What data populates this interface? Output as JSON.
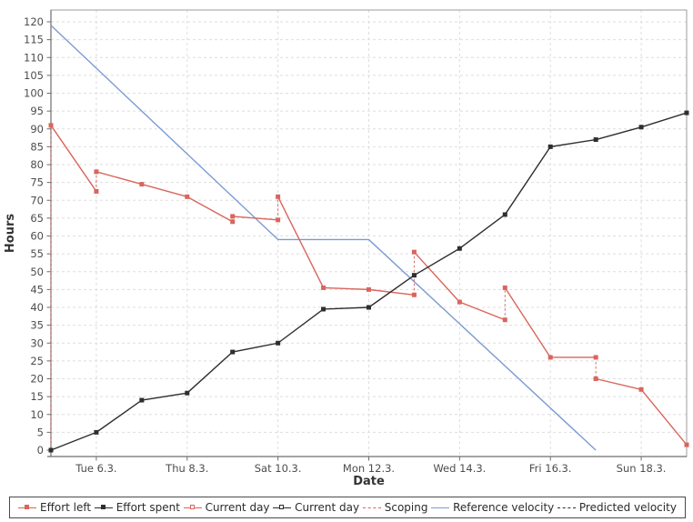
{
  "chart_data": {
    "type": "line",
    "xlabel": "Date",
    "ylabel": "Hours",
    "ylim": [
      0,
      120
    ],
    "ytick_step": 5,
    "x_axis_days": 14,
    "grid": "dashed",
    "x_ticks": [
      {
        "day": 1,
        "label": "Tue 6.3."
      },
      {
        "day": 3,
        "label": "Thu 8.3."
      },
      {
        "day": 5,
        "label": "Sat 10.3."
      },
      {
        "day": 7,
        "label": "Mon 12.3."
      },
      {
        "day": 9,
        "label": "Wed 14.3."
      },
      {
        "day": 11,
        "label": "Fri 16.3."
      },
      {
        "day": 13,
        "label": "Sun 18.3."
      }
    ],
    "colors": {
      "effort_left": "#d9655c",
      "effort_spent": "#2e2e2e",
      "reference": "#7b9bd2",
      "scoping": "#d9655c",
      "grid": "#dedede"
    },
    "series": [
      {
        "name": "Effort left",
        "type": "line",
        "color_key": "effort_left",
        "marker": "filled-square",
        "runs": [
          [
            [
              0,
              91
            ],
            [
              1,
              72.5
            ]
          ],
          [
            [
              1,
              78
            ],
            [
              2,
              74.5
            ],
            [
              3,
              71
            ],
            [
              4,
              64
            ]
          ],
          [
            [
              4,
              65.5
            ],
            [
              5,
              64.5
            ]
          ],
          [
            [
              5,
              71
            ],
            [
              6,
              45.5
            ],
            [
              7,
              45
            ],
            [
              8,
              43.5
            ]
          ],
          [
            [
              8,
              55.5
            ],
            [
              9,
              41.5
            ],
            [
              10,
              36.5
            ]
          ],
          [
            [
              10,
              45.5
            ],
            [
              11,
              26
            ],
            [
              12,
              26
            ]
          ],
          [
            [
              12,
              20
            ],
            [
              13,
              17
            ],
            [
              14,
              1.5
            ]
          ]
        ],
        "extra_markers": [
          [
            0,
            0
          ]
        ]
      },
      {
        "name": "Effort spent",
        "type": "line",
        "color_key": "effort_spent",
        "marker": "filled-square",
        "points": [
          [
            0,
            0
          ],
          [
            1,
            5
          ],
          [
            2,
            14
          ],
          [
            3,
            16
          ],
          [
            4,
            27.5
          ],
          [
            5,
            30
          ],
          [
            6,
            39.5
          ],
          [
            7,
            40
          ],
          [
            8,
            49
          ],
          [
            9,
            56.5
          ],
          [
            10,
            66
          ],
          [
            11,
            85
          ],
          [
            12,
            87
          ],
          [
            13,
            90.5
          ],
          [
            14,
            94.5
          ]
        ]
      },
      {
        "name": "Scoping",
        "type": "dashed-vertical",
        "color_key": "scoping",
        "segments": [
          [
            0,
            0,
            91
          ],
          [
            1,
            72.5,
            78
          ],
          [
            4,
            64,
            65.5
          ],
          [
            5,
            64.5,
            71
          ],
          [
            8,
            43.5,
            55.5
          ],
          [
            10,
            36.5,
            45.5
          ],
          [
            12,
            26,
            20
          ]
        ]
      },
      {
        "name": "Reference velocity",
        "type": "line",
        "color_key": "reference",
        "marker": "none",
        "points": [
          [
            0,
            119
          ],
          [
            5,
            59
          ],
          [
            7,
            59
          ],
          [
            12,
            0
          ]
        ]
      }
    ]
  },
  "legend": {
    "items": [
      {
        "label": "Effort left"
      },
      {
        "label": "Effort spent"
      },
      {
        "label": "Current day"
      },
      {
        "label": "Current day"
      },
      {
        "label": "Scoping"
      },
      {
        "label": "Reference velocity"
      },
      {
        "label": "Predicted velocity"
      }
    ]
  }
}
